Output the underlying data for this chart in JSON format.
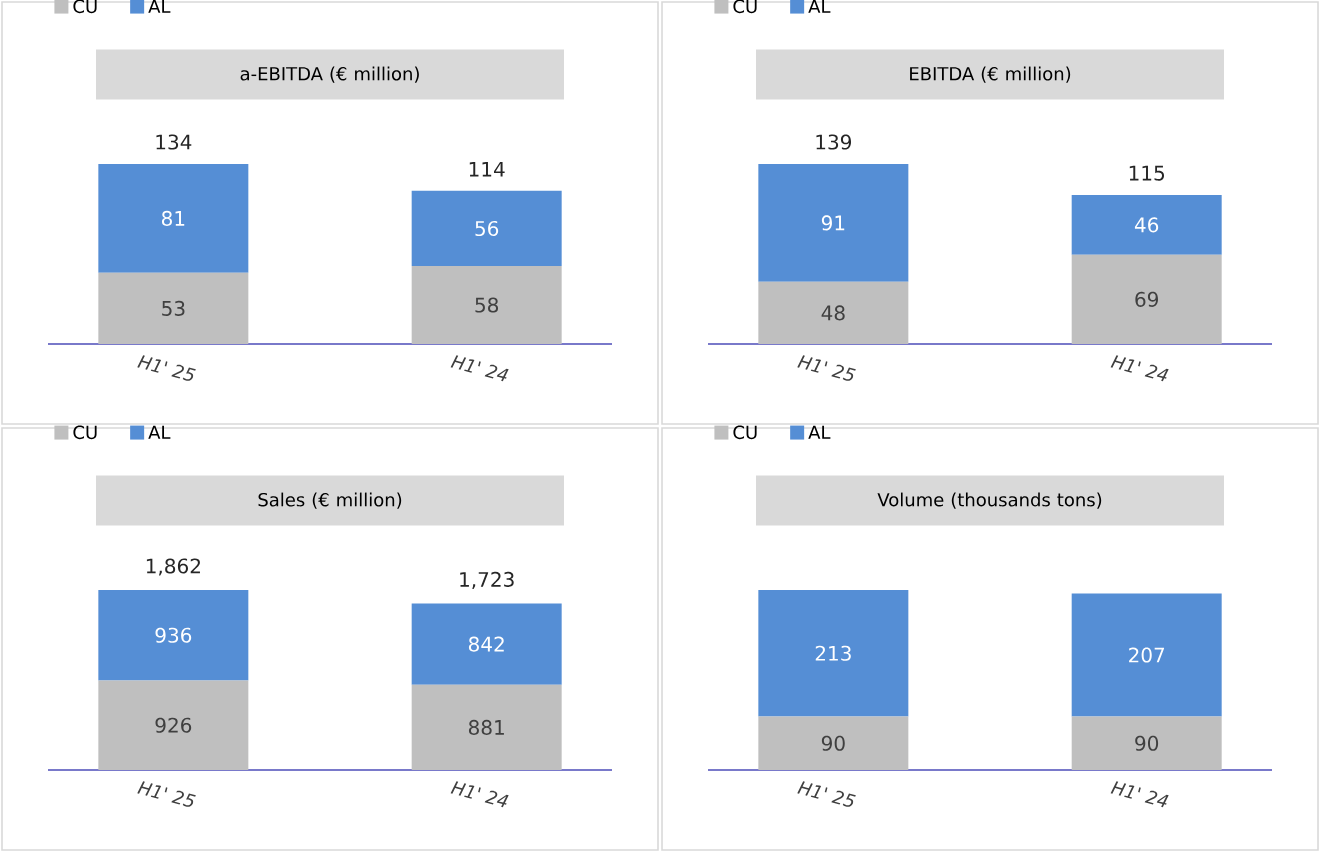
{
  "chart_data": [
    {
      "type": "bar",
      "title": "a-EBITDA (€ million)",
      "categories": [
        "H1' 25",
        "H1' 24"
      ],
      "stacked": true,
      "legend": "top left",
      "data_labels": true,
      "totals": [
        "134",
        "114"
      ],
      "series": [
        {
          "name": "CU",
          "color": "#bfbfbf",
          "values": [
            53,
            58
          ]
        },
        {
          "name": "AL",
          "color": "#558ed5",
          "values": [
            81,
            56
          ]
        }
      ]
    },
    {
      "type": "bar",
      "title": "EBITDA (€ million)",
      "categories": [
        "H1' 25",
        "H1' 24"
      ],
      "stacked": true,
      "legend": "top left",
      "data_labels": true,
      "totals": [
        "139",
        "115"
      ],
      "series": [
        {
          "name": "CU",
          "color": "#bfbfbf",
          "values": [
            48,
            69
          ]
        },
        {
          "name": "AL",
          "color": "#558ed5",
          "values": [
            91,
            46
          ]
        }
      ]
    },
    {
      "type": "bar",
      "title": "Sales (€ million)",
      "categories": [
        "H1' 25",
        "H1' 24"
      ],
      "stacked": true,
      "legend": "top left",
      "data_labels": true,
      "totals": [
        "1,862",
        "1,723"
      ],
      "series": [
        {
          "name": "CU",
          "color": "#bfbfbf",
          "values": [
            926,
            881
          ]
        },
        {
          "name": "AL",
          "color": "#558ed5",
          "values": [
            936,
            842
          ]
        }
      ]
    },
    {
      "type": "bar",
      "title": "Volume (thousands tons)",
      "categories": [
        "H1' 25",
        "H1' 24"
      ],
      "stacked": true,
      "legend": "top left",
      "data_labels": true,
      "series": [
        {
          "name": "CU",
          "color": "#bfbfbf",
          "values": [
            90,
            90
          ]
        },
        {
          "name": "AL",
          "color": "#558ed5",
          "values": [
            213,
            207
          ]
        }
      ]
    }
  ]
}
